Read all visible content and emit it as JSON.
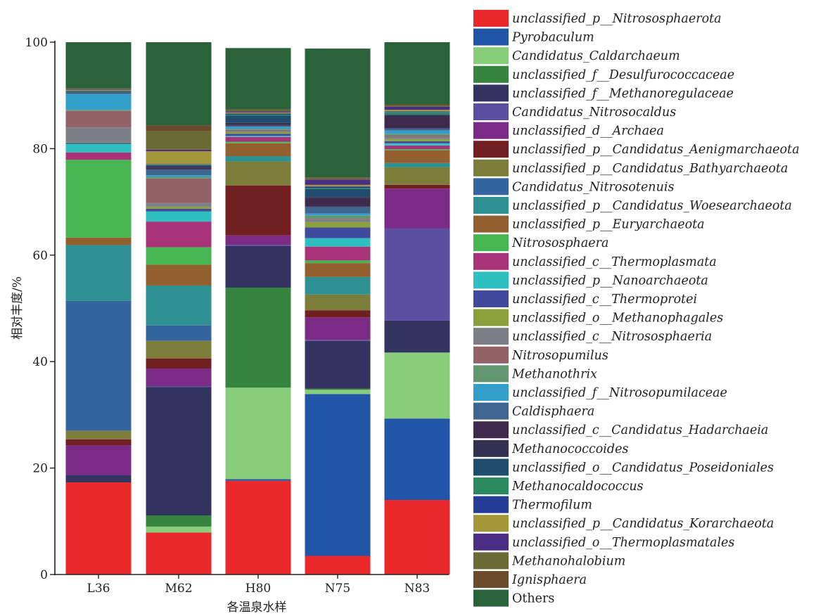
{
  "chart_data": {
    "type": "bar",
    "stacked": true,
    "title": "",
    "xlabel": "各温泉水样",
    "ylabel": "相对丰度/%",
    "ylim": [
      0,
      100
    ],
    "yticks": [
      0,
      20,
      40,
      60,
      80,
      100
    ],
    "categories": [
      "L36",
      "M62",
      "H80",
      "N75",
      "N83"
    ],
    "legend_position": "right",
    "series": [
      {
        "name": "unclassified_p__Nitrososphaerota",
        "color": "#ea2a2a",
        "italic": true,
        "values": [
          17.3,
          7.9,
          17.6,
          3.5,
          14.0
        ]
      },
      {
        "name": "Pyrobaculum",
        "color": "#2155a8",
        "italic": true,
        "values": [
          0,
          0,
          0.3,
          30.4,
          15.3
        ]
      },
      {
        "name": "Candidatus_Caldarchaeum",
        "color": "#88cd7b",
        "italic": true,
        "values": [
          0,
          1.1,
          17.2,
          0.8,
          12.4
        ]
      },
      {
        "name": "unclassified_f__Desulfurococcaceae",
        "color": "#358440",
        "italic": true,
        "values": [
          0,
          2.1,
          18.8,
          0.2,
          0
        ]
      },
      {
        "name": "unclassified_f__Methanoregulaceae",
        "color": "#32335f",
        "italic": true,
        "values": [
          1.4,
          24.1,
          7.8,
          9.0,
          6.0
        ]
      },
      {
        "name": "Candidatus_Nitrosocaldus",
        "color": "#5c4ea1",
        "italic": true,
        "values": [
          0,
          0.2,
          0.2,
          0.2,
          17.3
        ]
      },
      {
        "name": "unclassified_d__Archaea",
        "color": "#7b2a85",
        "italic": true,
        "values": [
          5.6,
          3.3,
          1.8,
          4.2,
          7.5
        ]
      },
      {
        "name": "unclassified_p__Candidatus_Aenigmarchaeota",
        "color": "#721f22",
        "italic": true,
        "values": [
          1.1,
          1.9,
          9.4,
          1.3,
          0.7
        ]
      },
      {
        "name": "unclassified_p__Candidatus_Bathyarchaeota",
        "color": "#7d7d3a",
        "italic": true,
        "values": [
          1.6,
          3.3,
          4.5,
          3.0,
          3.3
        ]
      },
      {
        "name": "Candidatus_Nitrosotenuis",
        "color": "#34659f",
        "italic": true,
        "values": [
          24.4,
          2.9,
          0,
          0,
          0
        ]
      },
      {
        "name": "unclassified_p__Candidatus_Woesearchaeota",
        "color": "#2e9090",
        "italic": true,
        "values": [
          10.5,
          7.5,
          1.0,
          3.3,
          0.8
        ]
      },
      {
        "name": "unclassified_p__Euryarchaeota",
        "color": "#925f2e",
        "italic": true,
        "values": [
          1.4,
          3.9,
          2.4,
          2.6,
          2.4
        ]
      },
      {
        "name": "Nitrososphaera",
        "color": "#47b552",
        "italic": true,
        "values": [
          14.6,
          3.3,
          0.3,
          0.5,
          0.2
        ]
      },
      {
        "name": "unclassified_c__Thermoplasmata",
        "color": "#a93378",
        "italic": true,
        "values": [
          1.4,
          4.8,
          0.9,
          2.6,
          0.7
        ]
      },
      {
        "name": "unclassified_p__Nanoarchaeota",
        "color": "#2ebfc0",
        "italic": true,
        "values": [
          1.6,
          1.9,
          0.2,
          1.6,
          0.4
        ]
      },
      {
        "name": "unclassified_c__Thermoprotei",
        "color": "#404a9c",
        "italic": true,
        "values": [
          0.2,
          0.5,
          0.4,
          2.0,
          0.4
        ]
      },
      {
        "name": "unclassified_o__Methanophagales",
        "color": "#8aa03a",
        "italic": true,
        "values": [
          0.1,
          0.4,
          0.3,
          1.0,
          0.4
        ]
      },
      {
        "name": "unclassified_c__Nitrososphaeria",
        "color": "#7c7f86",
        "italic": true,
        "values": [
          2.8,
          0.7,
          0.2,
          0.4,
          0.5
        ]
      },
      {
        "name": "Nitrosopumilus",
        "color": "#936268",
        "italic": true,
        "values": [
          3.1,
          4.6,
          0.2,
          0.2,
          0.2
        ]
      },
      {
        "name": "Methanothrix",
        "color": "#649670",
        "italic": true,
        "values": [
          0.2,
          0.3,
          0.2,
          0.6,
          0.3
        ]
      },
      {
        "name": "unclassified_f__Nitrosopumilaceae",
        "color": "#339ec9",
        "italic": true,
        "values": [
          3.0,
          0.3,
          0.4,
          0.4,
          0.6
        ]
      },
      {
        "name": "Caldisphaera",
        "color": "#3e6690",
        "italic": true,
        "values": [
          0.1,
          1.1,
          0.2,
          1.3,
          0.4
        ]
      },
      {
        "name": "unclassified_c__Candidatus_Hadarchaeia",
        "color": "#3e2a4d",
        "italic": true,
        "values": [
          0.1,
          0.3,
          0.2,
          1.5,
          2.0
        ]
      },
      {
        "name": "Methanococcoides",
        "color": "#343050",
        "italic": true,
        "values": [
          0.1,
          0.3,
          0.4,
          0.3,
          0.5
        ]
      },
      {
        "name": "unclassified_o__Candidatus_Poseidoniales",
        "color": "#204d6e",
        "italic": true,
        "values": [
          0.1,
          0.2,
          1.3,
          1.5,
          0.2
        ]
      },
      {
        "name": "Methanocaldococcus",
        "color": "#2b8a60",
        "italic": true,
        "values": [
          0.1,
          0.1,
          0.2,
          0.2,
          0.4
        ]
      },
      {
        "name": "Thermofilum",
        "color": "#233d96",
        "italic": true,
        "values": [
          0.1,
          0.1,
          0.2,
          0.3,
          0.1
        ]
      },
      {
        "name": "unclassified_p__Candidatus_Korarchaeota",
        "color": "#a39739",
        "italic": true,
        "values": [
          0.1,
          2.4,
          0.2,
          0.3,
          0.3
        ]
      },
      {
        "name": "unclassified_o__Thermoplasmatales",
        "color": "#4a2e84",
        "italic": true,
        "values": [
          0.1,
          0.3,
          0.2,
          1.0,
          0.6
        ]
      },
      {
        "name": "Methanohalobium",
        "color": "#6a6a34",
        "italic": true,
        "values": [
          0.1,
          3.5,
          0.2,
          0.2,
          0.2
        ]
      },
      {
        "name": "Ignisphaera",
        "color": "#6a4b2b",
        "italic": true,
        "values": [
          0.1,
          1.1,
          0.2,
          0.2,
          0.2
        ]
      },
      {
        "name": "Others",
        "color": "#2a623a",
        "italic": false,
        "values": [
          9.0,
          15.7,
          11.5,
          24.2,
          11.8
        ]
      }
    ]
  }
}
